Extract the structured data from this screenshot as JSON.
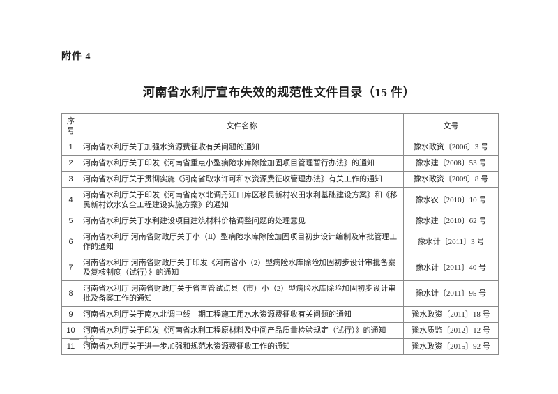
{
  "page": {
    "attachment_label": "附件 4",
    "title": "河南省水利厅宣布失效的规范性文件目录（15 件）",
    "page_number": "— 16 —"
  },
  "table": {
    "headers": [
      "序号",
      "文件名称",
      "文号"
    ],
    "rows": [
      {
        "no": "1",
        "name": "河南省水利厅关于加强水资源费征收有关问题的通知",
        "doc_no": "豫水政资〔2006〕3 号"
      },
      {
        "no": "2",
        "name": "河南省水利厅关于印发《河南省重点小型病险水库除险加固项目管理暂行办法》的通知",
        "doc_no": "豫水建〔2008〕53 号"
      },
      {
        "no": "3",
        "name": "河南省水利厅关于贯彻实施《河南省取水许可和水资源费征收管理办法》有关工作的通知",
        "doc_no": "豫水政资〔2009〕8 号"
      },
      {
        "no": "4",
        "name": "河南省水利厅关于印发《河南省南水北调丹江口库区移民新村农田水利基础建设方案》和《移民新村饮水安全工程建设实施方案》的通知",
        "doc_no": "豫水农〔2010〕10 号"
      },
      {
        "no": "5",
        "name": "河南省水利厅关于水利建设项目建筑材料价格调整问题的处理意见",
        "doc_no": "豫水建〔2010〕62 号"
      },
      {
        "no": "6",
        "name": "河南省水利厅 河南省财政厅关于小（Ⅱ）型病险水库除险加固项目初步设计编制及审批管理工作的通知",
        "doc_no": "豫水计〔2011〕3 号"
      },
      {
        "no": "7",
        "name": "河南省水利厅 河南省财政厅关于印发《河南省小（2）型病险水库除险加固初步设计审批备案及复核制度（试行）》的通知",
        "doc_no": "豫水计〔2011〕40 号"
      },
      {
        "no": "8",
        "name": "河南省水利厅 河南省财政厅关于省直管试点县（市）小（2）型病险水库除险加固初步设计审批及备案工作的通知",
        "doc_no": "豫水计〔2011〕95 号"
      },
      {
        "no": "9",
        "name": "河南省水利厅关于南水北调中线—期工程施工用水水资源费征收有关问题的通知",
        "doc_no": "豫水政资〔2011〕18 号"
      },
      {
        "no": "10",
        "name": "河南省水利厅关于印发《河南省水利工程原材料及中间产品质量检验规定（试行）》的通知",
        "doc_no": "豫水质监〔2012〕12 号"
      },
      {
        "no": "11",
        "name": "河南省水利厅关于进一步加强和规范水资源费征收工作的通知",
        "doc_no": "豫水政资〔2015〕92 号"
      }
    ]
  }
}
